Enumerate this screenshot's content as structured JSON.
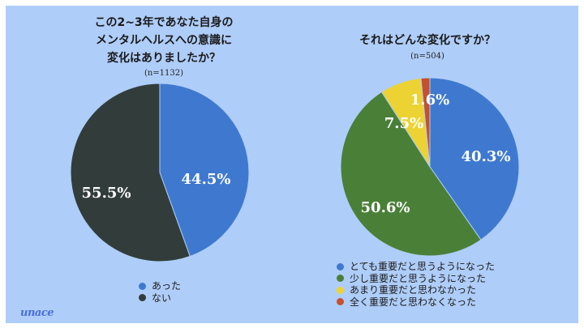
{
  "colors": {
    "background": "#aecdf8",
    "blue": "#3f79cf",
    "dark": "#323d3b",
    "green": "#4a7f38",
    "yellow": "#ecd333",
    "red": "#c5502d"
  },
  "left_chart": {
    "title_lines": [
      "この2~3年であなた自身の",
      "メンタルヘルスへの意識に",
      "変化はありましたか？"
    ],
    "n_label": "(n=1132)"
  },
  "right_chart": {
    "title": "それはどんな変化ですか？",
    "n_label": "(n=504)"
  },
  "chart_data": [
    {
      "type": "pie",
      "title": "この2~3年であなた自身のメンタルヘルスへの意識に変化はありましたか？",
      "n": "(n=1132)",
      "categories": [
        "あった",
        "ない"
      ],
      "values": [
        44.5,
        55.5
      ],
      "labels": [
        "44.5%",
        "55.5%"
      ],
      "colors": [
        "#3f79cf",
        "#323d3b"
      ],
      "legend_position": "bottom"
    },
    {
      "type": "pie",
      "title": "それはどんな変化ですか？",
      "n": "(n=504)",
      "categories": [
        "とても重要だと思うようになった",
        "少し重要だと思うようになった",
        "あまり重要だと思わなかった",
        "全く重要だと思わなくなった"
      ],
      "values": [
        40.3,
        50.6,
        7.5,
        1.6
      ],
      "labels": [
        "40.3%",
        "50.6%",
        "7.5%",
        "1.6%"
      ],
      "colors": [
        "#3f79cf",
        "#4a7f38",
        "#ecd333",
        "#c5502d"
      ],
      "legend_position": "bottom"
    }
  ],
  "logo_text": "unace"
}
